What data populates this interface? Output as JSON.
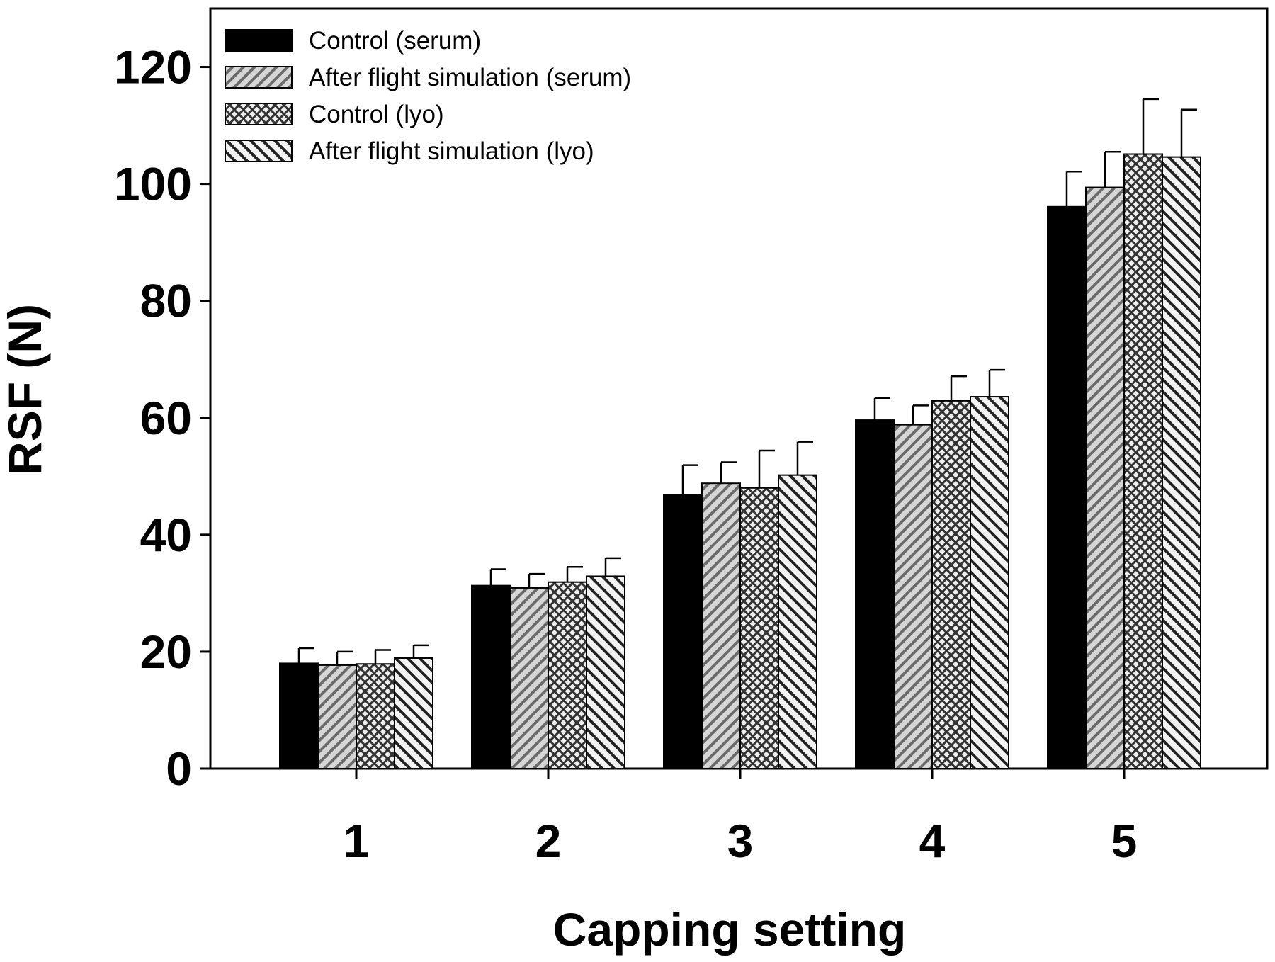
{
  "chart_data": {
    "type": "bar",
    "xlabel": "Capping setting",
    "ylabel": "RSF (N)",
    "categories": [
      "1",
      "2",
      "3",
      "4",
      "5"
    ],
    "ylim": [
      0,
      130
    ],
    "yticks": [
      0,
      20,
      40,
      60,
      80,
      100,
      120
    ],
    "grid": false,
    "legend_position": "top-left",
    "series": [
      {
        "name": "Control (serum)",
        "pattern": "solid",
        "color": "#000000",
        "values": [
          18.0,
          31.3,
          46.8,
          59.6,
          96.1
        ],
        "errors": [
          2.6,
          2.8,
          5.1,
          3.8,
          6.0
        ]
      },
      {
        "name": "After flight simulation (serum)",
        "pattern": "diagonal-up",
        "color": "#999999",
        "values": [
          17.7,
          30.9,
          48.8,
          58.8,
          99.4
        ],
        "errors": [
          2.3,
          2.4,
          3.6,
          3.3,
          6.1
        ]
      },
      {
        "name": "Control (lyo)",
        "pattern": "crosshatch",
        "color": "#888888",
        "values": [
          17.9,
          31.9,
          48.0,
          62.9,
          105.1
        ],
        "errors": [
          2.4,
          2.6,
          6.4,
          4.2,
          9.4
        ]
      },
      {
        "name": "After flight simulation (lyo)",
        "pattern": "diagonal-down",
        "color": "#999999",
        "values": [
          18.9,
          32.9,
          50.2,
          63.6,
          104.6
        ],
        "errors": [
          2.2,
          3.1,
          5.7,
          4.6,
          8.1
        ]
      }
    ]
  }
}
